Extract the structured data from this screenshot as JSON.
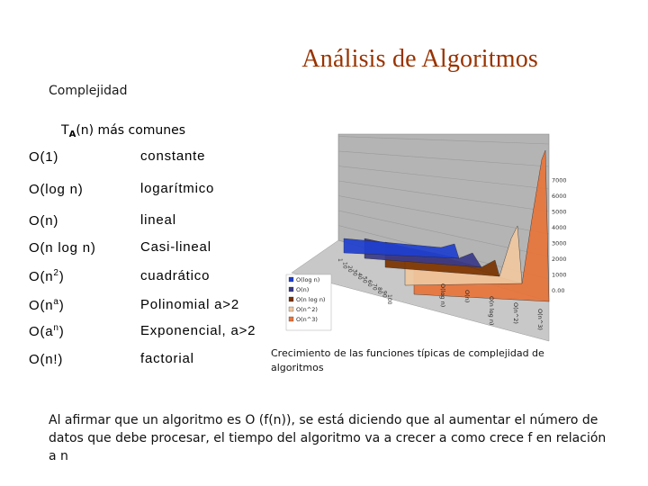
{
  "slide": {
    "title": "Análisis de Algoritmos",
    "subtitle": "Complejidad",
    "table_heading": {
      "prefix": "T",
      "sub": "A",
      "suffix": "(n) más comunes"
    },
    "rows": [
      {
        "pre": "O(1)",
        "sup": "",
        "post": "",
        "desc": "constante"
      },
      {
        "pre": "O(log n)",
        "sup": "",
        "post": "",
        "desc": "logarítmico"
      },
      {
        "pre": "O(n)",
        "sup": "",
        "post": "",
        "desc": "lineal"
      },
      {
        "pre": "O(n log n)",
        "sup": "",
        "post": "",
        "desc": "Casi-lineal"
      },
      {
        "pre": "O(n",
        "sup": "2",
        "post": ")",
        "desc": "cuadrático"
      },
      {
        "pre": "O(n",
        "sup": "a",
        "post": ")",
        "desc": "Polinomial a>2"
      },
      {
        "pre": "O(a",
        "sup": "n",
        "post": ")",
        "desc": "Exponencial, a>2"
      },
      {
        "pre": "O(n!)",
        "sup": "",
        "post": "",
        "desc": "factorial"
      }
    ],
    "caption": "Crecimiento de las funciones típicas de complejidad de algoritmos",
    "body_text": "Al afirmar que un algoritmo es O (f(n)), se está diciendo que al aumentar el número de datos que debe procesar, el tiempo del algoritmo va a crecer a como crece f en relación a n"
  },
  "colors": {
    "title": "#993300",
    "chart_wall": "#b4b4b4",
    "chart_floor": "#c8c8c8",
    "log_series": "#1f3fcf",
    "n_series": "#3a3a8a",
    "nlogn_series": "#7a3300",
    "n2_series": "#f0c8a0",
    "n3_series": "#e8743a"
  },
  "chart_data": {
    "type": "area",
    "y_ticks": [
      "0.00",
      "1000",
      "2000",
      "3000",
      "4000",
      "5000",
      "6000",
      "7000"
    ],
    "x_ticks": [
      "1",
      "10",
      "20",
      "30",
      "40",
      "50",
      "60",
      "70",
      "80",
      "90",
      "100"
    ],
    "series_labels": [
      "O(log n)",
      "O(n)",
      "O(n log n)",
      "O(n^2)",
      "O(n^3)"
    ],
    "legend": [
      "O(log n)",
      "O(n)",
      "O(n log n)",
      "O(n^2)",
      "O(n^3)"
    ]
  }
}
